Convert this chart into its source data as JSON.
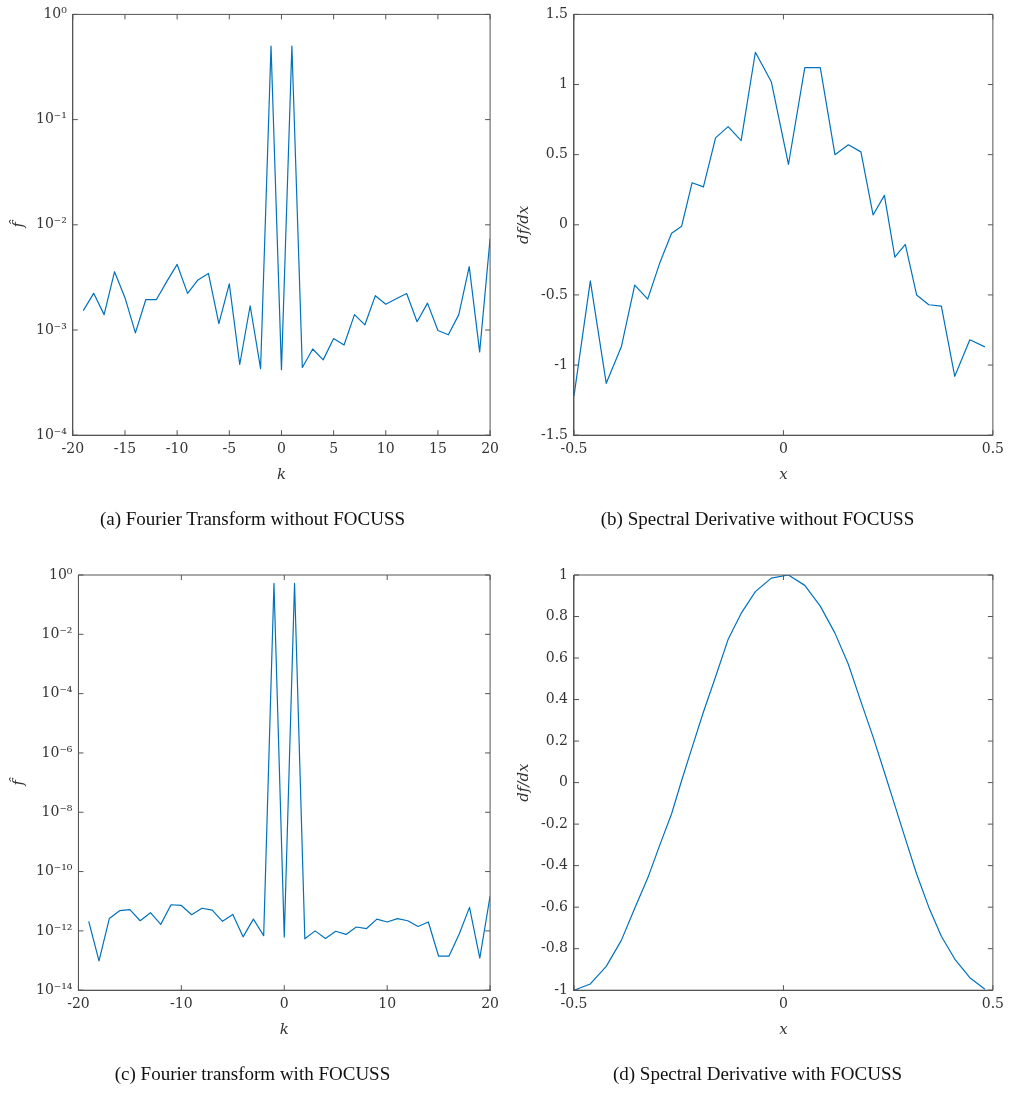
{
  "chart_data": [
    {
      "type": "line",
      "title": "(a) Fourier Transform without FOCUSS",
      "xlabel": "k",
      "ylabel": "f̂",
      "log": "y",
      "xlim": [
        -20,
        20
      ],
      "xticks": [
        -20,
        -15,
        -10,
        -5,
        0,
        5,
        10,
        15,
        20
      ],
      "ylim": [
        0.0001,
        1
      ],
      "yticks": [
        {
          "value": 0.0001,
          "label": "10⁻⁴"
        },
        {
          "value": 0.001,
          "label": "10⁻³"
        },
        {
          "value": 0.01,
          "label": "10⁻²"
        },
        {
          "value": 0.1,
          "label": "10⁻¹"
        },
        {
          "value": 1,
          "label": "10⁰"
        }
      ],
      "x": [
        -19,
        -18,
        -17,
        -16,
        -15,
        -14,
        -13,
        -12,
        -11,
        -10,
        -9,
        -8,
        -7,
        -6,
        -5,
        -4,
        -3,
        -2,
        -1,
        0,
        1,
        2,
        3,
        4,
        5,
        6,
        7,
        8,
        9,
        10,
        11,
        12,
        13,
        14,
        15,
        16,
        17,
        18,
        19,
        20
      ],
      "series": [
        {
          "color": "#0072bd",
          "values": [
            0.00153,
            0.00223,
            0.0014,
            0.00358,
            0.00203,
            0.00094,
            0.00195,
            0.00194,
            0.00288,
            0.0042,
            0.00223,
            0.00299,
            0.00345,
            0.00115,
            0.00274,
            0.00047,
            0.0017,
            0.00043,
            0.5,
            0.00042,
            0.5,
            0.00044,
            0.00066,
            0.00052,
            0.00083,
            0.00072,
            0.0014,
            0.00112,
            0.00212,
            0.00176,
            0.00198,
            0.00222,
            0.0012,
            0.0018,
            0.00099,
            0.0009,
            0.0014,
            0.004,
            0.00062,
            0.0074
          ]
        }
      ]
    },
    {
      "type": "line",
      "title": "(b) Spectral Derivative without FOCUSS",
      "xlabel": "x",
      "ylabel": "df/dx",
      "xlim": [
        -0.5,
        0.5
      ],
      "xticks": [
        -0.5,
        0,
        0.5
      ],
      "ylim": [
        -1.5,
        1.5
      ],
      "yticks": [
        -1.5,
        -1,
        -0.5,
        0,
        0.5,
        1,
        1.5
      ],
      "x": [
        -0.5,
        -0.461,
        -0.423,
        -0.387,
        -0.355,
        -0.324,
        -0.295,
        -0.267,
        -0.243,
        -0.218,
        -0.191,
        -0.162,
        -0.132,
        -0.101,
        -0.067,
        -0.029,
        0.012,
        0.051,
        0.088,
        0.123,
        0.155,
        0.185,
        0.214,
        0.241,
        0.266,
        0.291,
        0.318,
        0.347,
        0.377,
        0.409,
        0.445,
        0.481
      ],
      "series": [
        {
          "color": "#0072bd",
          "values": [
            -1.22,
            -0.4,
            -1.13,
            -0.87,
            -0.43,
            -0.53,
            -0.27,
            -0.06,
            -0.01,
            0.3,
            0.27,
            0.62,
            0.7,
            0.6,
            1.23,
            1.02,
            0.43,
            1.12,
            1.12,
            0.5,
            0.57,
            0.52,
            0.07,
            0.21,
            -0.23,
            -0.14,
            -0.5,
            -0.57,
            -0.58,
            -1.08,
            -0.82,
            -0.87
          ]
        }
      ]
    },
    {
      "type": "line",
      "title": "(c) Fourier transform with FOCUSS",
      "xlabel": "k",
      "ylabel": "f̂",
      "log": "y",
      "xlim": [
        -20,
        20
      ],
      "xticks": [
        -20,
        -10,
        0,
        10,
        20
      ],
      "ylim": [
        1e-14,
        1
      ],
      "yticks": [
        {
          "value": 1e-14,
          "label": "10⁻¹⁴"
        },
        {
          "value": 1e-12,
          "label": "10⁻¹²"
        },
        {
          "value": 1e-10,
          "label": "10⁻¹⁰"
        },
        {
          "value": 1e-08,
          "label": "10⁻⁸"
        },
        {
          "value": 1e-06,
          "label": "10⁻⁶"
        },
        {
          "value": 0.0001,
          "label": "10⁻⁴"
        },
        {
          "value": 0.01,
          "label": "10⁻²"
        },
        {
          "value": 1,
          "label": "10⁰"
        }
      ],
      "x": [
        -19,
        -18,
        -17,
        -16,
        -15,
        -14,
        -13,
        -12,
        -11,
        -10,
        -9,
        -8,
        -7,
        -6,
        -5,
        -4,
        -3,
        -2,
        -1,
        0,
        1,
        2,
        3,
        4,
        5,
        6,
        7,
        8,
        9,
        10,
        11,
        12,
        13,
        14,
        15,
        16,
        17,
        18,
        19,
        20
      ],
      "series": [
        {
          "color": "#0072bd",
          "values": [
            2.1e-12,
            9.8e-14,
            2.6e-12,
            4.8e-12,
            5.2e-12,
            2.2e-12,
            4.1e-12,
            1.66e-12,
            7.6e-12,
            7.2e-12,
            3.5e-12,
            5.8e-12,
            5e-12,
            2.1e-12,
            3.6e-12,
            6.3e-13,
            2.5e-12,
            6.9e-13,
            0.52,
            6.2e-13,
            0.52,
            5.4e-13,
            1e-12,
            5.5e-13,
            9.7e-13,
            7.6e-13,
            1.35e-12,
            1.2e-12,
            2.5e-12,
            2e-12,
            2.6e-12,
            2.2e-12,
            1.4e-12,
            2e-12,
            1.4e-13,
            1.4e-13,
            7.8e-13,
            6.2e-12,
            1.2e-13,
            1.5e-11
          ]
        }
      ]
    },
    {
      "type": "line",
      "title": "(d) Spectral Derivative with FOCUSS",
      "xlabel": "x",
      "ylabel": "df/dx",
      "xlim": [
        -0.5,
        0.5
      ],
      "xticks": [
        -0.5,
        0,
        0.5
      ],
      "ylim": [
        -1,
        1
      ],
      "yticks": [
        -1,
        -0.8,
        -0.6,
        -0.4,
        -0.2,
        0,
        0.2,
        0.4,
        0.6,
        0.8,
        1
      ],
      "x": [
        -0.5,
        -0.461,
        -0.423,
        -0.387,
        -0.355,
        -0.324,
        -0.295,
        -0.267,
        -0.243,
        -0.218,
        -0.191,
        -0.162,
        -0.132,
        -0.101,
        -0.067,
        -0.029,
        0.012,
        0.051,
        0.088,
        0.123,
        0.155,
        0.185,
        0.214,
        0.241,
        0.266,
        0.291,
        0.318,
        0.347,
        0.377,
        0.409,
        0.445,
        0.481
      ],
      "series": [
        {
          "color": "#0072bd",
          "values": [
            -1,
            -0.97,
            -0.885,
            -0.76,
            -0.605,
            -0.46,
            -0.3,
            -0.15,
            0.01,
            0.17,
            0.34,
            0.51,
            0.69,
            0.815,
            0.92,
            0.985,
            1,
            0.95,
            0.85,
            0.72,
            0.57,
            0.39,
            0.22,
            0.05,
            -0.11,
            -0.27,
            -0.44,
            -0.6,
            -0.74,
            -0.85,
            -0.94,
            -0.995
          ]
        }
      ]
    }
  ]
}
